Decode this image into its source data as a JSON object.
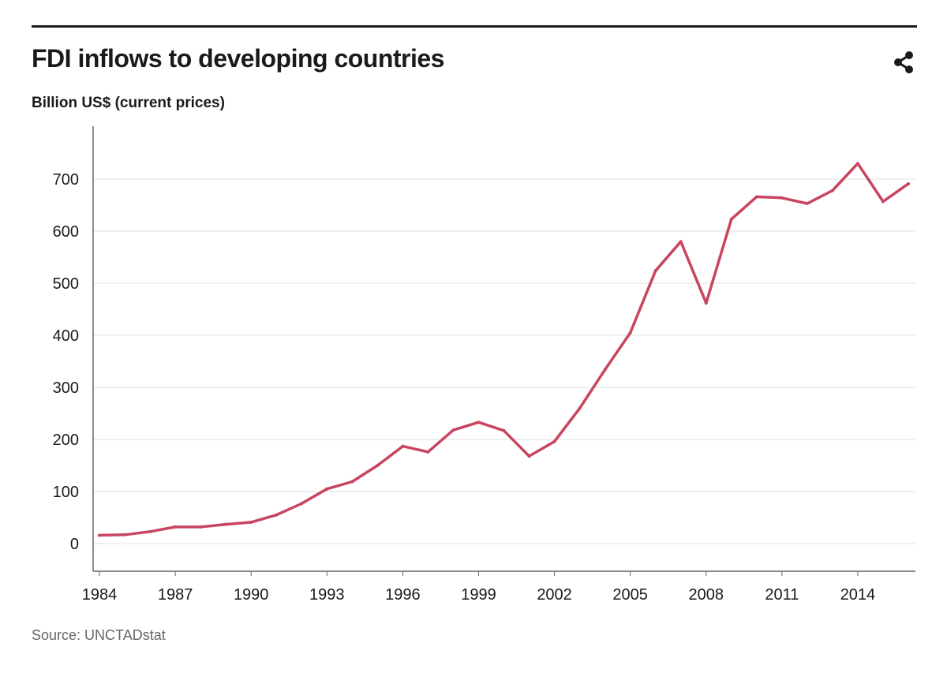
{
  "header": {
    "title": "FDI inflows to developing countries",
    "subtitle": "Billion US$ (current prices)",
    "share_icon": "share-icon"
  },
  "footer": {
    "source": "Source: UNCTADstat"
  },
  "colors": {
    "line": "#c8455f",
    "grid": "#e2e2e2",
    "axis": "#666666",
    "rule": "#1a1a1a"
  },
  "chart_data": {
    "type": "line",
    "title": "FDI inflows to developing countries",
    "ylabel": "Billion US$ (current prices)",
    "xlabel": "",
    "x": [
      1984,
      1985,
      1986,
      1987,
      1988,
      1989,
      1990,
      1991,
      1992,
      1993,
      1994,
      1995,
      1996,
      1997,
      1998,
      1999,
      2000,
      2001,
      2002,
      2003,
      2004,
      2005,
      2006,
      2007,
      2008,
      2009,
      2010,
      2011,
      2012,
      2013,
      2014,
      2015,
      2016
    ],
    "series": [
      {
        "values": [
          16,
          17,
          23,
          32,
          32,
          37,
          41,
          55,
          77,
          105,
          119,
          150,
          187,
          176,
          218,
          233,
          217,
          168,
          196,
          260,
          334,
          405,
          524,
          580,
          462,
          623,
          666,
          664,
          653,
          678,
          730,
          657,
          691
        ]
      }
    ],
    "x_ticks": [
      "1984",
      "1987",
      "1990",
      "1993",
      "1996",
      "1999",
      "2002",
      "2005",
      "2008",
      "2011",
      "2014"
    ],
    "y_ticks": [
      "0",
      "100",
      "200",
      "300",
      "400",
      "500",
      "600",
      "700"
    ],
    "xlim": [
      1984,
      2016
    ],
    "ylim": [
      -50,
      800
    ],
    "grid": "horizontal",
    "legend": "none"
  }
}
